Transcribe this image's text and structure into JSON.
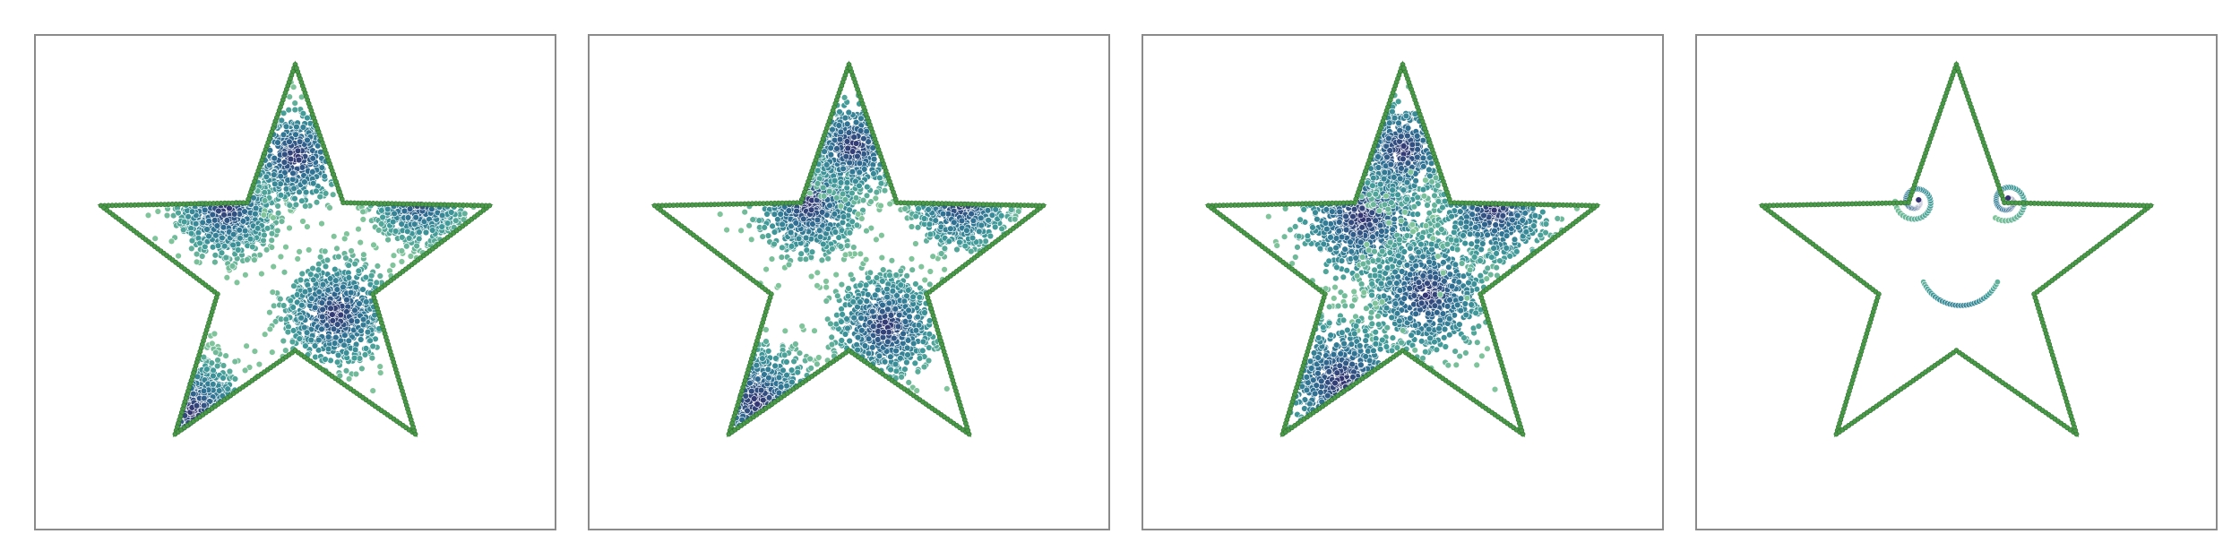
{
  "chart_data": [
    {
      "type": "scatter",
      "title": "",
      "xlabel": "",
      "ylabel": "",
      "grid": false,
      "legend": "none",
      "xlim": [
        -1.1,
        1.1
      ],
      "ylim": [
        -1.1,
        1.1
      ],
      "boundary": {
        "shape": "five-pointed star",
        "outer_radius": 1.0,
        "inner_radius": 0.4,
        "color": "#4a9a4a"
      },
      "colormap": [
        "#7fc49a",
        "#3f9a99",
        "#2e6f93",
        "#342f6e"
      ],
      "clusters": [
        {
          "center": [
            -0.34,
            0.3
          ],
          "spread": 0.12,
          "density": "high"
        },
        {
          "center": [
            0.2,
            -0.22
          ],
          "spread": 0.13,
          "density": "high"
        },
        {
          "center": [
            -0.5,
            -0.7
          ],
          "spread": 0.13,
          "density": "medium"
        },
        {
          "center": [
            0.0,
            0.55
          ],
          "spread": 0.12,
          "density": "medium"
        },
        {
          "center": [
            0.6,
            0.35
          ],
          "spread": 0.11,
          "density": "medium"
        }
      ]
    },
    {
      "type": "scatter",
      "title": "",
      "xlabel": "",
      "ylabel": "",
      "grid": false,
      "legend": "none",
      "xlim": [
        -1.1,
        1.1
      ],
      "ylim": [
        -1.1,
        1.1
      ],
      "boundary": {
        "shape": "five-pointed star",
        "outer_radius": 1.0,
        "inner_radius": 0.4,
        "color": "#4a9a4a"
      },
      "colormap": [
        "#7fc49a",
        "#3f9a99",
        "#2e6f93",
        "#342f6e"
      ],
      "clusters": [
        {
          "center": [
            -0.2,
            0.32
          ],
          "spread": 0.13,
          "density": "high"
        },
        {
          "center": [
            0.18,
            -0.28
          ],
          "spread": 0.13,
          "density": "high"
        },
        {
          "center": [
            -0.45,
            -0.65
          ],
          "spread": 0.14,
          "density": "medium"
        },
        {
          "center": [
            0.02,
            0.6
          ],
          "spread": 0.12,
          "density": "medium"
        },
        {
          "center": [
            0.55,
            0.33
          ],
          "spread": 0.12,
          "density": "medium"
        }
      ]
    },
    {
      "type": "scatter",
      "title": "",
      "xlabel": "",
      "ylabel": "",
      "grid": false,
      "legend": "none",
      "xlim": [
        -1.1,
        1.1
      ],
      "ylim": [
        -1.1,
        1.1
      ],
      "boundary": {
        "shape": "five-pointed star",
        "outer_radius": 1.0,
        "inner_radius": 0.4,
        "color": "#4a9a4a"
      },
      "colormap": [
        "#7fc49a",
        "#3f9a99",
        "#2e6f93",
        "#342f6e"
      ],
      "clusters": [
        {
          "center": [
            -0.2,
            0.25
          ],
          "spread": 0.16,
          "density": "high"
        },
        {
          "center": [
            0.12,
            -0.12
          ],
          "spread": 0.15,
          "density": "high"
        },
        {
          "center": [
            -0.3,
            -0.55
          ],
          "spread": 0.16,
          "density": "medium"
        },
        {
          "center": [
            0.0,
            0.58
          ],
          "spread": 0.13,
          "density": "medium"
        },
        {
          "center": [
            0.45,
            0.3
          ],
          "spread": 0.14,
          "density": "medium"
        }
      ]
    },
    {
      "type": "scatter",
      "title": "",
      "xlabel": "",
      "ylabel": "",
      "grid": false,
      "legend": "none",
      "xlim": [
        -1.1,
        1.1
      ],
      "ylim": [
        -1.1,
        1.1
      ],
      "boundary": {
        "shape": "five-pointed star",
        "outer_radius": 1.0,
        "inner_radius": 0.4,
        "color": "#4a9a4a"
      },
      "colormap": [
        "#7fc49a",
        "#3f9a99",
        "#2e6f93",
        "#342f6e"
      ],
      "eyes": [
        {
          "center": [
            -0.2,
            0.33
          ],
          "outer_radius": 0.1
        },
        {
          "center": [
            0.25,
            0.33
          ],
          "outer_radius": 0.1
        }
      ],
      "mouth": {
        "center": [
          0.02,
          0.02
        ],
        "radius": 0.2,
        "start_deg": 205,
        "end_deg": 335
      }
    }
  ]
}
